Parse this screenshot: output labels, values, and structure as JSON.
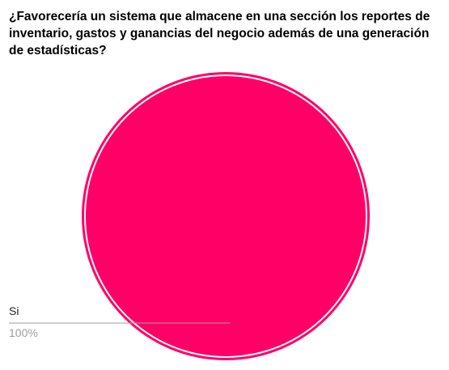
{
  "chart_data": {
    "type": "pie",
    "title": "¿Favorecería un sistema que almacene en una sección los reportes de inventario, gastos y ganancias del negocio además de una generación de estadísticas?",
    "slices": [
      {
        "label": "Si",
        "value": 100,
        "percent_label": "100%",
        "color": "#ff0066"
      }
    ],
    "legend": "callout-left"
  },
  "colors": {
    "slice": "#ff0066",
    "label_text": "#222222",
    "percent_text": "#9e9e9e",
    "leader_line": "#9e9e9e"
  }
}
